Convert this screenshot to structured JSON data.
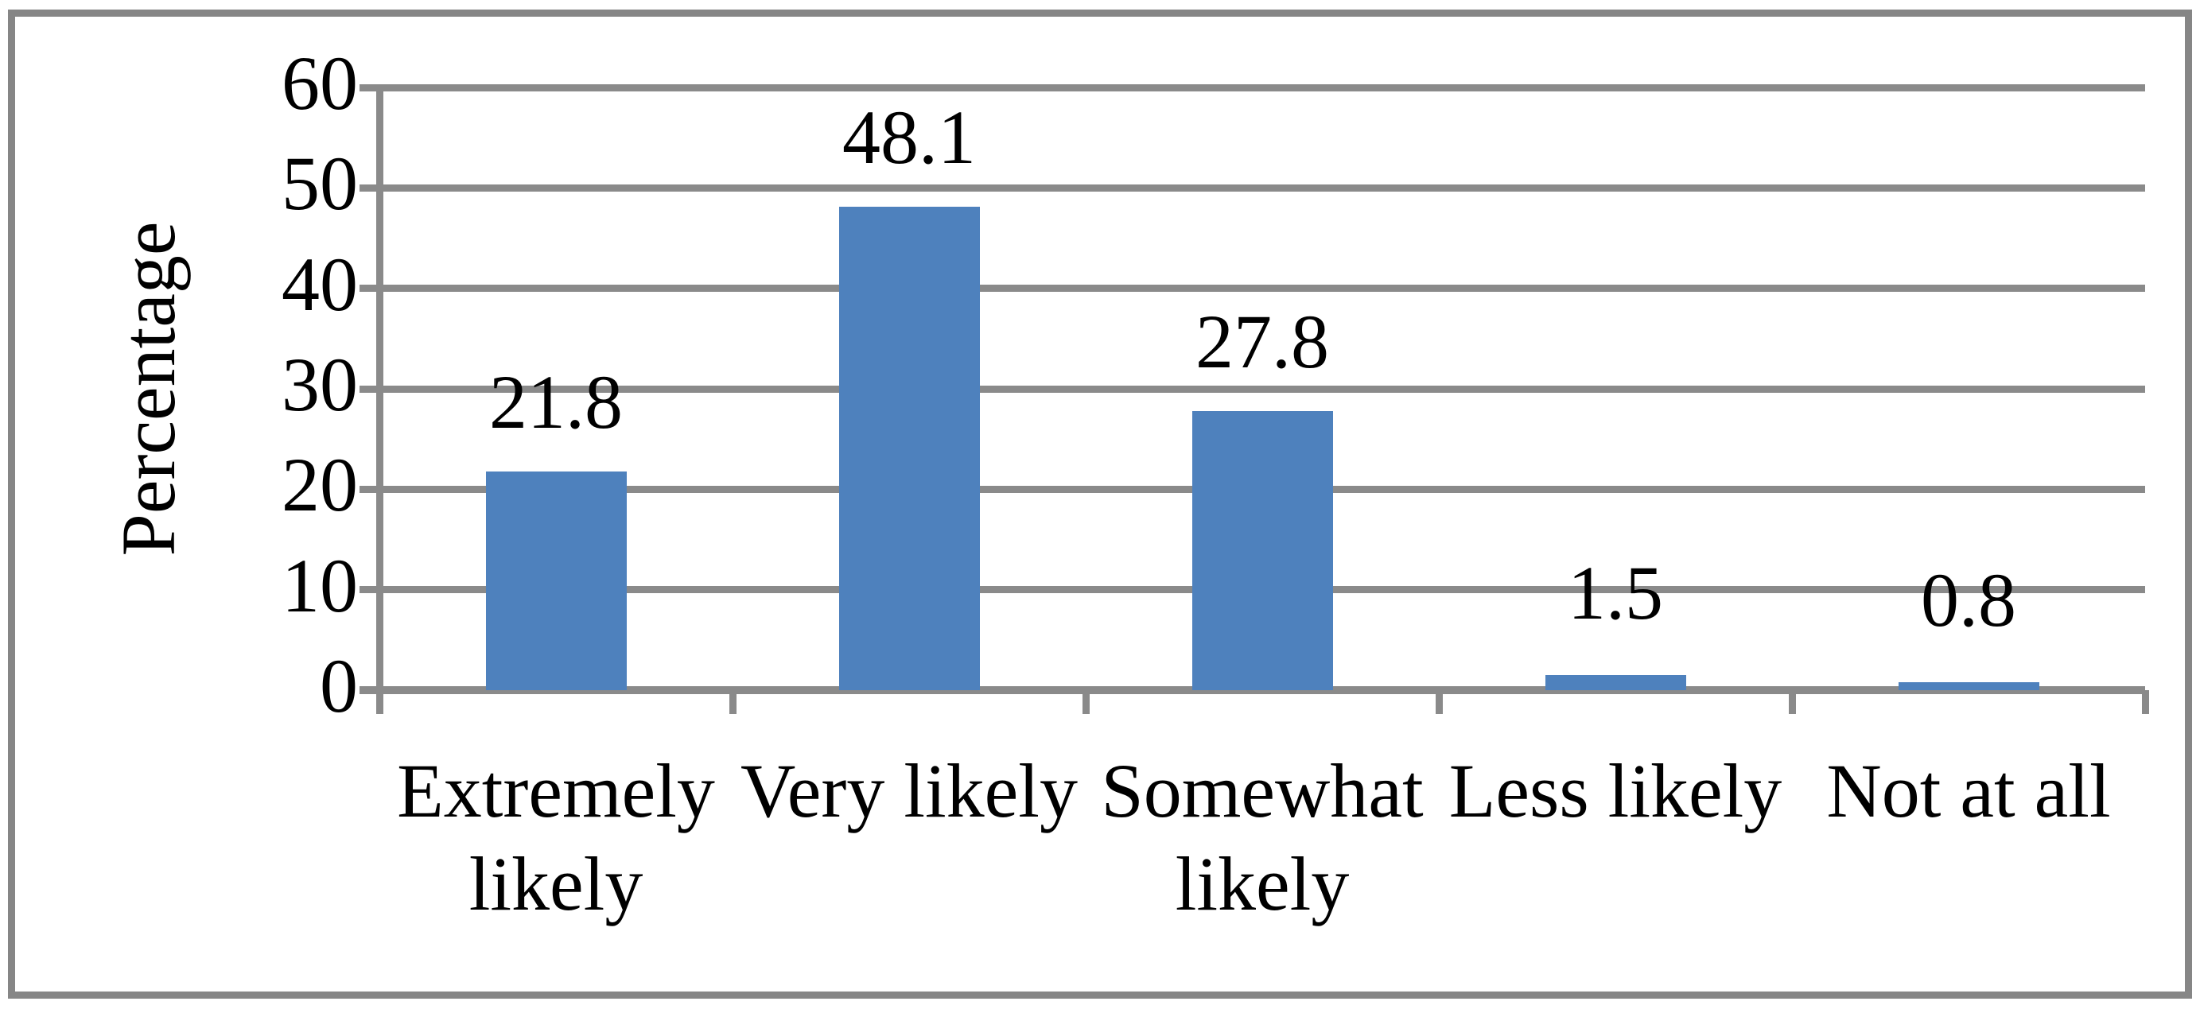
{
  "chart_data": {
    "type": "bar",
    "title": "",
    "xlabel": "",
    "ylabel": "Percentage",
    "categories": [
      "Extremely likely",
      "Very likely",
      "Somewhat likely",
      "Less likely",
      "Not at all"
    ],
    "values": [
      21.8,
      48.1,
      27.8,
      1.5,
      0.8
    ],
    "data_labels": [
      "21.8",
      "48.1",
      "27.8",
      "1.5",
      "0.8"
    ],
    "ylim": [
      0,
      60
    ],
    "ytick_step": 10,
    "ytick_labels": [
      "0",
      "10",
      "20",
      "30",
      "40",
      "50",
      "60"
    ],
    "grid": true,
    "legend": "none",
    "colors": {
      "bar": "#4E81BD",
      "gridline": "#8A8A8A",
      "frame": "#868686",
      "text": "#000000",
      "background": "#ffffff"
    }
  }
}
